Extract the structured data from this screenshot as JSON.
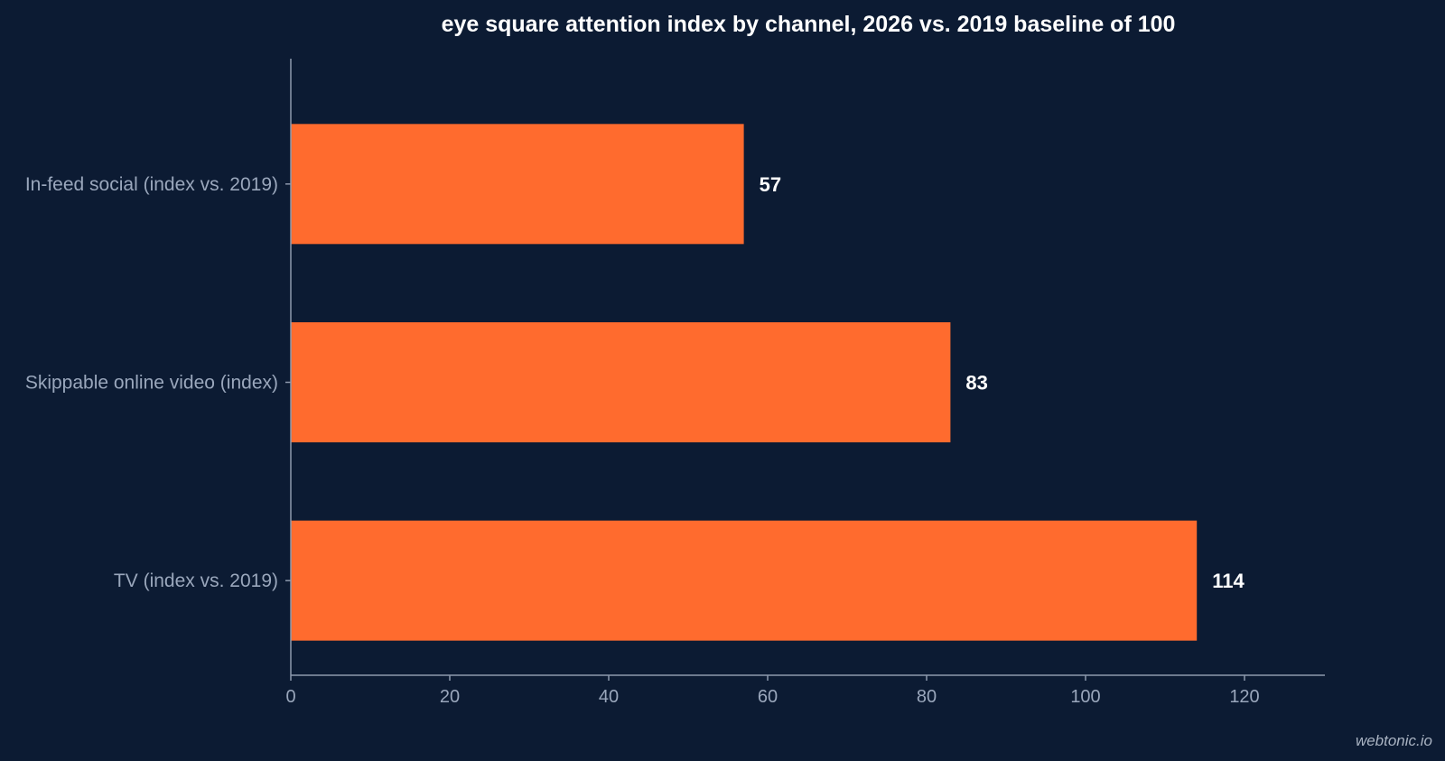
{
  "colors": {
    "background": "#0c1b33",
    "bar": "#ff6b2e",
    "axis": "#8d99ad",
    "label_text": "#9aa7bc",
    "value_text": "#ffffff"
  },
  "watermark": "webtonic.io",
  "chart_data": {
    "type": "bar",
    "orientation": "horizontal",
    "title": "eye square attention index by channel, 2026 vs. 2019 baseline of 100",
    "xlabel": "",
    "ylabel": "",
    "categories": [
      "In-feed social (index vs. 2019)",
      "Skippable online video (index)",
      "TV (index vs. 2019)"
    ],
    "values": [
      57,
      83,
      114
    ],
    "value_labels": [
      "57",
      "83",
      "114"
    ],
    "xlim": [
      0,
      130
    ],
    "xticks": [
      0,
      20,
      40,
      60,
      80,
      100,
      120
    ],
    "xtick_labels": [
      "0",
      "20",
      "40",
      "60",
      "80",
      "100",
      "120"
    ],
    "grid": false,
    "legend": "none"
  }
}
